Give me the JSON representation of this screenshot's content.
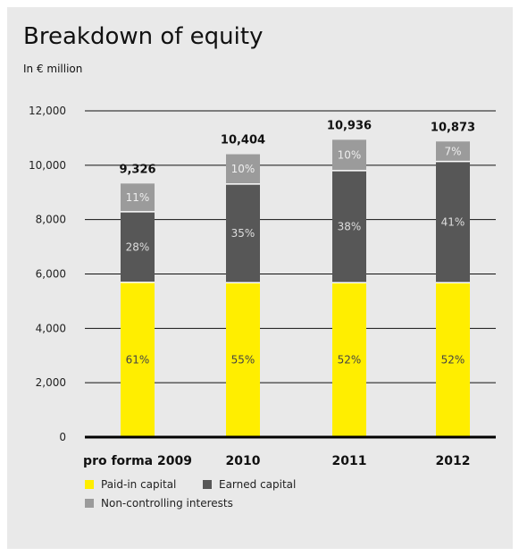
{
  "chart_data": {
    "type": "bar",
    "stacked": true,
    "title": "Breakdown of equity",
    "subtitle": "In € million",
    "categories": [
      "pro forma 2009",
      "2010",
      "2011",
      "2012"
    ],
    "totals": [
      "9,326",
      "10,404",
      "10,936",
      "10,873"
    ],
    "total_values": [
      9326,
      10404,
      10936,
      10873
    ],
    "yticks": [
      "0",
      "2,000",
      "4,000",
      "6,000",
      "8,000",
      "10,000",
      "12,000"
    ],
    "ylim": [
      0,
      12000
    ],
    "grid": true,
    "series": [
      {
        "name": "Paid-in capital",
        "color": "#ffee00",
        "text_color": "#444444",
        "values": [
          5690,
          5680,
          5680,
          5680
        ],
        "labels": [
          "61%",
          "55%",
          "52%",
          "52%"
        ]
      },
      {
        "name": "Earned capital",
        "color": "#575757",
        "text_color": "#dddddd",
        "values": [
          2600,
          3630,
          4120,
          4460
        ],
        "labels": [
          "28%",
          "35%",
          "38%",
          "41%"
        ]
      },
      {
        "name": "Non-controlling interests",
        "color": "#9b9b9b",
        "text_color": "#eeeeee",
        "values": [
          1036,
          1094,
          1136,
          733
        ],
        "labels": [
          "11%",
          "10%",
          "10%",
          "7%"
        ]
      }
    ],
    "legend_position": "bottom-left"
  }
}
